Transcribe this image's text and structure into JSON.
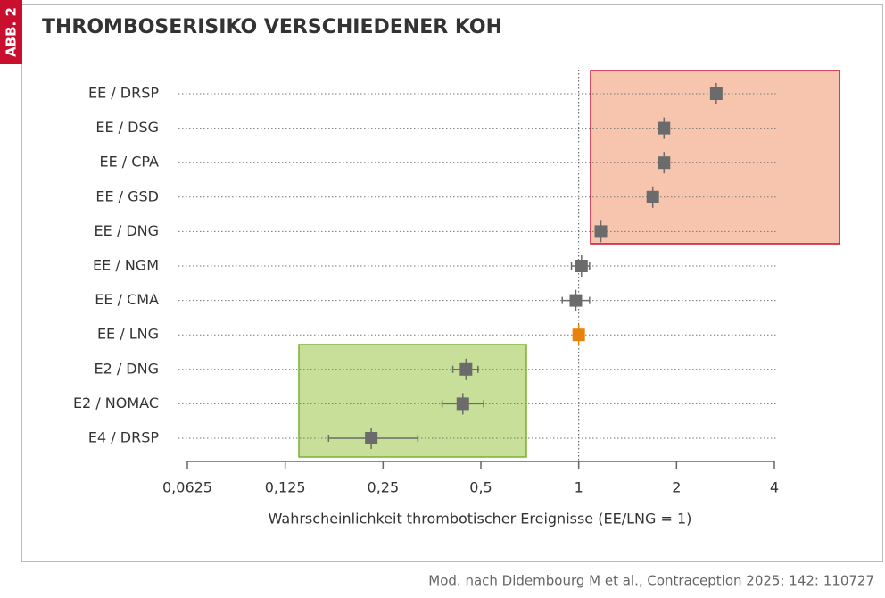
{
  "badge": "ABB. 2",
  "source": "Mod. nach Didembourg M et al., Contraception 2025; 142: 110727",
  "chart_data": {
    "type": "forest",
    "title": "THROMBOSERISIKO VERSCHIEDENER KOH",
    "x_label": "Wahrscheinlichkeit thrombotischer Ereignisse (EE/LNG = 1)",
    "categories": [
      "EE / DRSP",
      "EE / DSG",
      "EE / CPA",
      "EE / GSD",
      "EE / DNG",
      "EE / NGM",
      "EE / CMA",
      "EE / LNG",
      "E2 / DNG",
      "E2 / NOMAC",
      "E4 / DRSP"
    ],
    "values": [
      2.65,
      1.83,
      1.83,
      1.69,
      1.17,
      1.02,
      0.98,
      1,
      0.45,
      0.44,
      0.23
    ],
    "lower": [
      2.6,
      1.78,
      1.78,
      1.64,
      1.13,
      0.95,
      0.89,
      1,
      0.41,
      0.38,
      0.17
    ],
    "upper": [
      2.7,
      1.88,
      1.88,
      1.74,
      1.21,
      1.08,
      1.08,
      1,
      0.49,
      0.51,
      0.32
    ],
    "point_colors": [
      "#6b6b6b",
      "#6b6b6b",
      "#6b6b6b",
      "#6b6b6b",
      "#6b6b6b",
      "#6b6b6b",
      "#6b6b6b",
      "#e8820c",
      "#6b6b6b",
      "#6b6b6b",
      "#6b6b6b"
    ],
    "xscale": "log",
    "xlim": [
      0.0625,
      4
    ],
    "xticks": [
      {
        "value": 0.0625,
        "label": "0,0625"
      },
      {
        "value": 0.125,
        "label": "0,125"
      },
      {
        "value": 0.25,
        "label": "0,25"
      },
      {
        "value": 0.5,
        "label": "0,5"
      },
      1,
      2,
      4
    ],
    "reference": 1,
    "grid": true
  }
}
